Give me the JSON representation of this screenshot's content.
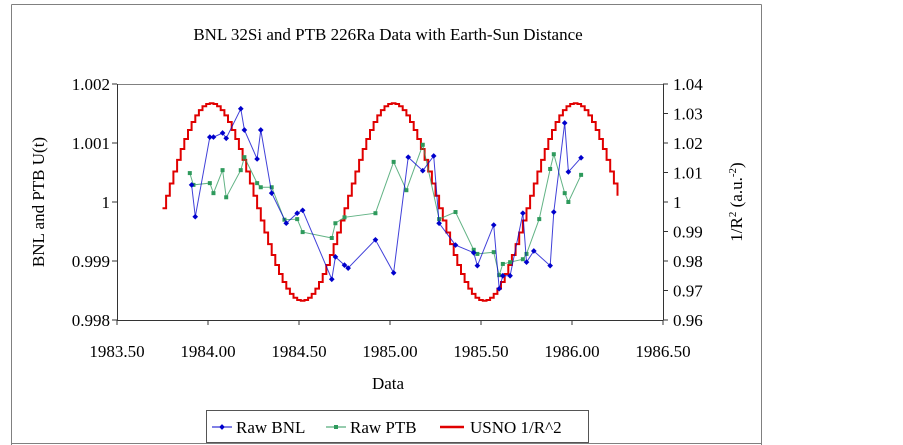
{
  "chart_data": {
    "type": "line",
    "title": "BNL 32Si and PTB 226Ra Data with Earth-Sun Distance",
    "xlabel": "Data",
    "ylabel": "BNL and PTB U(t)",
    "y2label": "1/R",
    "y2label_sup": "2",
    "y2label_tail": " (a.u.",
    "y2label_sup2": "-2",
    "y2label_close": ")",
    "xlim": [
      1983.5,
      1986.5
    ],
    "ylim": [
      0.998,
      1.002
    ],
    "y2lim": [
      0.96,
      1.04
    ],
    "xticks": [
      "1983.50",
      "1984.00",
      "1984.50",
      "1985.00",
      "1985.50",
      "1986.00",
      "1986.50"
    ],
    "xtick_values": [
      1983.5,
      1984.0,
      1984.5,
      1985.0,
      1985.5,
      1986.0,
      1986.5
    ],
    "yticks": [
      "0.998",
      "0.999",
      "1",
      "1.001",
      "1.002"
    ],
    "ytick_values": [
      0.998,
      0.999,
      1.0,
      1.001,
      1.002
    ],
    "y2ticks": [
      "0.96",
      "0.97",
      "0.98",
      "0.99",
      "1",
      "1.01",
      "1.02",
      "1.03",
      "1.04"
    ],
    "y2tick_values": [
      0.96,
      0.97,
      0.98,
      0.99,
      1.0,
      1.01,
      1.02,
      1.03,
      1.04
    ],
    "grid": false,
    "legend_position": "bottom",
    "colors": {
      "bnl": "#0000cc",
      "ptb": "#2e9a5c",
      "usno": "#e00000",
      "axis": "#808080"
    },
    "series": [
      {
        "name": "Raw BNL",
        "axis": "left",
        "marker": "diamond",
        "x": [
          1983.91,
          1983.93,
          1984.01,
          1984.03,
          1984.08,
          1984.1,
          1984.18,
          1984.2,
          1984.27,
          1984.29,
          1984.35,
          1984.43,
          1984.49,
          1984.52,
          1984.68,
          1984.7,
          1984.75,
          1984.77,
          1984.92,
          1985.02,
          1985.1,
          1985.18,
          1985.24,
          1985.27,
          1985.36,
          1985.46,
          1985.48,
          1985.57,
          1985.6,
          1985.62,
          1985.66,
          1985.73,
          1985.75,
          1985.79,
          1985.88,
          1985.9,
          1985.96,
          1985.98,
          1986.05
        ],
        "y": [
          1.00029,
          0.99975,
          1.0011,
          1.0011,
          1.00117,
          1.00108,
          1.00158,
          1.00122,
          1.00073,
          1.00122,
          1.00015,
          0.99964,
          0.99981,
          0.99986,
          0.99869,
          0.99907,
          0.99893,
          0.99888,
          0.99936,
          0.9988,
          1.00076,
          1.00053,
          1.00078,
          0.99964,
          0.99927,
          0.99914,
          0.99892,
          0.99961,
          0.99853,
          0.99875,
          0.99875,
          0.99981,
          0.99898,
          0.99917,
          0.99892,
          0.99983,
          1.00134,
          1.00051,
          1.00075
        ]
      },
      {
        "name": "Raw PTB",
        "axis": "left",
        "marker": "square",
        "x": [
          1983.9,
          1983.92,
          1984.01,
          1984.03,
          1984.08,
          1984.1,
          1984.18,
          1984.2,
          1984.27,
          1984.29,
          1984.35,
          1984.42,
          1984.49,
          1984.52,
          1984.68,
          1984.7,
          1984.75,
          1984.92,
          1985.02,
          1985.09,
          1985.18,
          1985.27,
          1985.36,
          1985.46,
          1985.48,
          1985.57,
          1985.6,
          1985.62,
          1985.66,
          1985.73,
          1985.75,
          1985.82,
          1985.88,
          1985.9,
          1985.96,
          1985.98,
          1986.05
        ],
        "y": [
          1.00049,
          1.00029,
          1.00032,
          1.00015,
          1.00054,
          1.00008,
          1.00054,
          1.00076,
          1.00032,
          1.00025,
          1.00025,
          0.9997,
          0.99971,
          0.99949,
          0.99939,
          0.99964,
          0.99974,
          0.99981,
          1.00068,
          1.0002,
          1.00097,
          0.99971,
          0.99983,
          0.99919,
          0.99912,
          0.99915,
          0.99876,
          0.99895,
          0.99898,
          0.99903,
          0.99912,
          0.99971,
          1.00056,
          1.00081,
          1.00015,
          1.0,
          1.00046
        ]
      },
      {
        "name": "USNO 1/R^2",
        "axis": "right",
        "marker": "none",
        "style": "step",
        "x_start": 1983.75,
        "x_end": 1986.25,
        "step": 0.02,
        "mean": 1.0,
        "amplitude": 0.0335,
        "peak_at": 1984.01,
        "period": 1.0
      }
    ]
  },
  "legend": {
    "items": [
      {
        "label": "Raw BNL"
      },
      {
        "label": "Raw PTB"
      },
      {
        "label": "USNO 1/R^2"
      }
    ]
  }
}
